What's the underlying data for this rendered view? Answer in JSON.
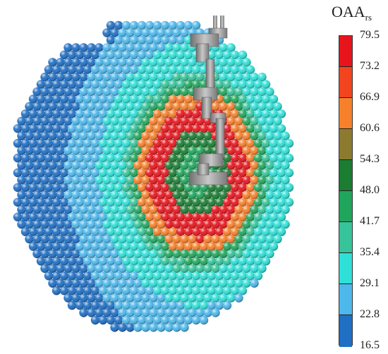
{
  "legend": {
    "title_main": "OAA",
    "title_sub": "rs",
    "ticks": [
      "79.5",
      "73.2",
      "66.9",
      "60.6",
      "54.3",
      "48.0",
      "41.7",
      "35.4",
      "29.1",
      "22.8",
      "16.5"
    ],
    "colors": [
      "#e8141c",
      "#f2451f",
      "#f7802a",
      "#8c7a2e",
      "#1a7d32",
      "#20a65c",
      "#37c49a",
      "#2ee0d8",
      "#4db8ec",
      "#1f6fc4"
    ]
  },
  "scene": {
    "robot_arm_color": "#9a9a9a"
  }
}
